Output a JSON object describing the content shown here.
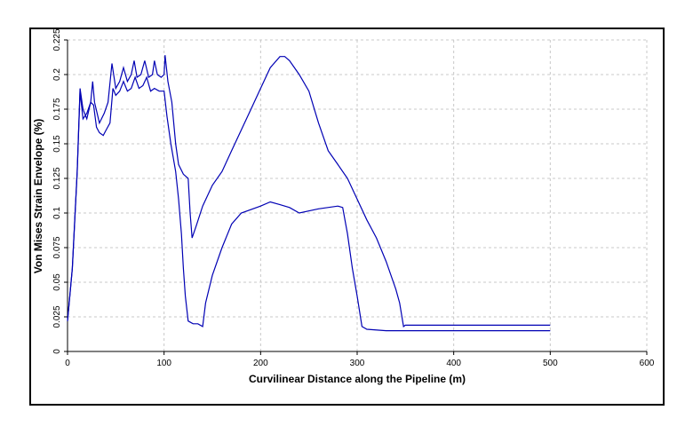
{
  "chart_data": {
    "type": "line",
    "xlabel": "Curvilinear Distance along the Pipeline (m)",
    "ylabel": "Von Mises Strain Envelope (%)",
    "xlim": [
      0,
      600
    ],
    "ylim": [
      0,
      0.225
    ],
    "xticks": [
      "0",
      "100",
      "200",
      "300",
      "400",
      "500",
      "600"
    ],
    "yticks": [
      "0",
      "0.025",
      "0.05",
      "0.075",
      "0.1",
      "0.125",
      "0.15",
      "0.175",
      "0.2",
      "0.225"
    ],
    "grid": true,
    "line_color": "#0000b4",
    "series": [
      {
        "points": [
          [
            0,
            0.022
          ],
          [
            5,
            0.06
          ],
          [
            10,
            0.13
          ],
          [
            13,
            0.19
          ],
          [
            16,
            0.175
          ],
          [
            20,
            0.168
          ],
          [
            24,
            0.18
          ],
          [
            26,
            0.195
          ],
          [
            28,
            0.18
          ],
          [
            33,
            0.165
          ],
          [
            38,
            0.172
          ],
          [
            42,
            0.18
          ],
          [
            46,
            0.208
          ],
          [
            50,
            0.19
          ],
          [
            54,
            0.195
          ],
          [
            58,
            0.205
          ],
          [
            62,
            0.195
          ],
          [
            66,
            0.2
          ],
          [
            69,
            0.21
          ],
          [
            72,
            0.198
          ],
          [
            76,
            0.2
          ],
          [
            80,
            0.21
          ],
          [
            84,
            0.198
          ],
          [
            88,
            0.2
          ],
          [
            90,
            0.21
          ],
          [
            93,
            0.2
          ],
          [
            97,
            0.198
          ],
          [
            100,
            0.2
          ],
          [
            101,
            0.214
          ],
          [
            104,
            0.195
          ],
          [
            108,
            0.18
          ],
          [
            112,
            0.15
          ],
          [
            115,
            0.135
          ],
          [
            120,
            0.128
          ],
          [
            125,
            0.125
          ],
          [
            127,
            0.1
          ],
          [
            129,
            0.082
          ],
          [
            133,
            0.09
          ],
          [
            140,
            0.105
          ],
          [
            150,
            0.12
          ],
          [
            160,
            0.13
          ],
          [
            170,
            0.145
          ],
          [
            180,
            0.16
          ],
          [
            190,
            0.175
          ],
          [
            200,
            0.19
          ],
          [
            210,
            0.205
          ],
          [
            220,
            0.213
          ],
          [
            225,
            0.213
          ],
          [
            230,
            0.21
          ],
          [
            240,
            0.2
          ],
          [
            250,
            0.188
          ],
          [
            260,
            0.165
          ],
          [
            270,
            0.145
          ],
          [
            280,
            0.135
          ],
          [
            290,
            0.125
          ],
          [
            300,
            0.11
          ],
          [
            310,
            0.095
          ],
          [
            320,
            0.082
          ],
          [
            330,
            0.065
          ],
          [
            340,
            0.045
          ],
          [
            344,
            0.035
          ],
          [
            348,
            0.018
          ],
          [
            350,
            0.019
          ],
          [
            400,
            0.019
          ],
          [
            500,
            0.019
          ]
        ]
      },
      {
        "points": [
          [
            0,
            0.022
          ],
          [
            5,
            0.06
          ],
          [
            10,
            0.13
          ],
          [
            13,
            0.188
          ],
          [
            16,
            0.168
          ],
          [
            20,
            0.172
          ],
          [
            24,
            0.18
          ],
          [
            27,
            0.178
          ],
          [
            30,
            0.162
          ],
          [
            33,
            0.158
          ],
          [
            37,
            0.156
          ],
          [
            40,
            0.16
          ],
          [
            44,
            0.165
          ],
          [
            47,
            0.19
          ],
          [
            50,
            0.185
          ],
          [
            54,
            0.188
          ],
          [
            58,
            0.195
          ],
          [
            62,
            0.188
          ],
          [
            66,
            0.19
          ],
          [
            70,
            0.198
          ],
          [
            74,
            0.19
          ],
          [
            78,
            0.192
          ],
          [
            82,
            0.198
          ],
          [
            86,
            0.188
          ],
          [
            90,
            0.19
          ],
          [
            95,
            0.188
          ],
          [
            100,
            0.188
          ],
          [
            103,
            0.17
          ],
          [
            107,
            0.15
          ],
          [
            112,
            0.13
          ],
          [
            115,
            0.11
          ],
          [
            118,
            0.085
          ],
          [
            120,
            0.06
          ],
          [
            122,
            0.04
          ],
          [
            125,
            0.022
          ],
          [
            130,
            0.02
          ],
          [
            135,
            0.02
          ],
          [
            140,
            0.018
          ],
          [
            143,
            0.035
          ],
          [
            150,
            0.055
          ],
          [
            160,
            0.075
          ],
          [
            170,
            0.092
          ],
          [
            180,
            0.1
          ],
          [
            200,
            0.105
          ],
          [
            210,
            0.108
          ],
          [
            220,
            0.106
          ],
          [
            230,
            0.104
          ],
          [
            240,
            0.1
          ],
          [
            260,
            0.103
          ],
          [
            280,
            0.105
          ],
          [
            285,
            0.104
          ],
          [
            290,
            0.085
          ],
          [
            295,
            0.06
          ],
          [
            300,
            0.04
          ],
          [
            305,
            0.018
          ],
          [
            310,
            0.016
          ],
          [
            330,
            0.015
          ],
          [
            400,
            0.015
          ],
          [
            500,
            0.015
          ]
        ]
      }
    ]
  }
}
